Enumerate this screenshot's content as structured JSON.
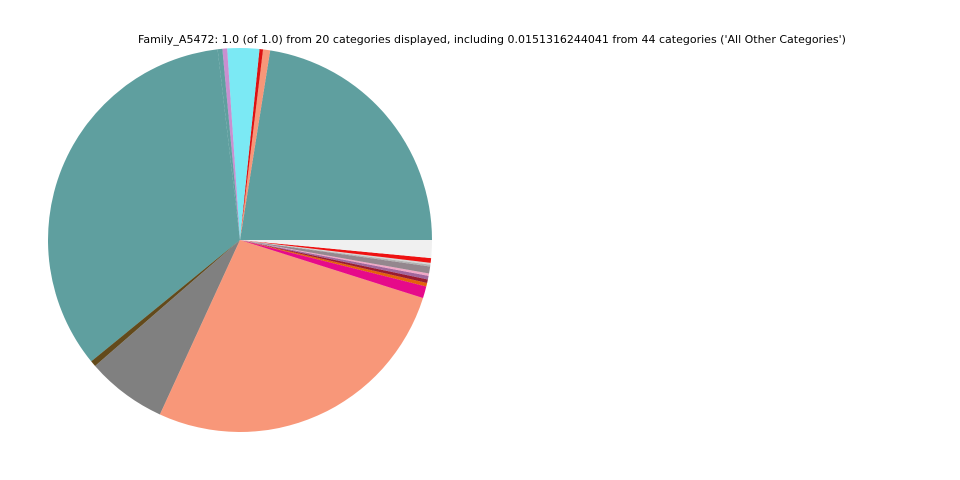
{
  "chart_data": {
    "type": "pie",
    "title": "Family_A5472: 1.0 (of 1.0) from 20 categories displayed, including 0.0151316244041 from 44 categories ('All Other Categories')",
    "start_angle_deg": 0,
    "direction": "counterclockwise",
    "legend": "none",
    "slices": [
      {
        "value": 0.226,
        "color": "#5f9f9f"
      },
      {
        "value": 0.006,
        "color": "#f89779"
      },
      {
        "value": 0.003,
        "color": "#dd1111"
      },
      {
        "value": 0.027,
        "color": "#7be9f4"
      },
      {
        "value": 0.004,
        "color": "#c98fd0"
      },
      {
        "value": 0.004,
        "color": "#5f9f9f"
      },
      {
        "value": 0.342,
        "color": "#5f9f9f"
      },
      {
        "value": 0.005,
        "color": "#634a1b"
      },
      {
        "value": 0.068,
        "color": "#808080"
      },
      {
        "value": 0.271,
        "color": "#f89779"
      },
      {
        "value": 0.01,
        "color": "#e60a8a"
      },
      {
        "value": 0.003,
        "color": "#e3620b"
      },
      {
        "value": 0.003,
        "color": "#9b1b30"
      },
      {
        "value": 0.003,
        "color": "#a1679d"
      },
      {
        "value": 0.002,
        "color": "#f1a7c6"
      },
      {
        "value": 0.006,
        "color": "#94878e"
      },
      {
        "value": 0.0015,
        "color": "#b3b3b3"
      },
      {
        "value": 0.0015,
        "color": "#d6d6d6"
      },
      {
        "value": 0.004,
        "color": "#ee1111"
      },
      {
        "value": 0.0151,
        "color": "#f0f0f0"
      }
    ]
  }
}
